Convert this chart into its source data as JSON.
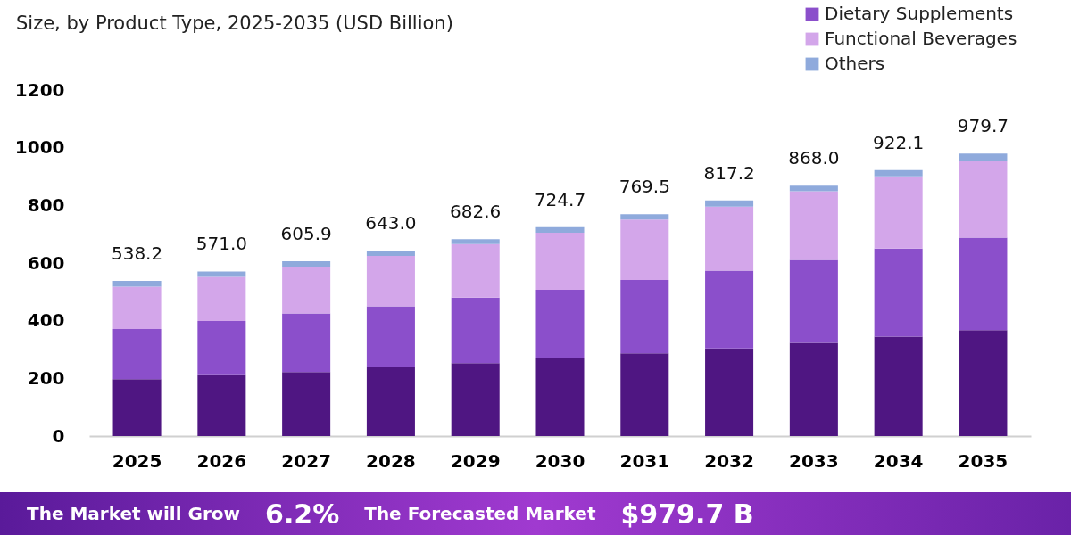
{
  "chart_data": {
    "type": "bar",
    "stacked": true,
    "subtitle": "Size, by Product Type, 2025-2035 (USD Billion)",
    "categories": [
      "2025",
      "2026",
      "2027",
      "2028",
      "2029",
      "2030",
      "2031",
      "2032",
      "2033",
      "2034",
      "2035"
    ],
    "series": [
      {
        "color": "#4f1682",
        "values": [
          197,
          211,
          222,
          238,
          253,
          269,
          287,
          304,
          323,
          345,
          367
        ]
      },
      {
        "name": "Dietary Supplements",
        "color": "#8b4fcb",
        "values": [
          174,
          188,
          203,
          212,
          227,
          238,
          254,
          270,
          288,
          305,
          321
        ]
      },
      {
        "name": "Functional Beverages",
        "color": "#d3a6ea",
        "values": [
          147,
          153,
          163,
          175,
          186,
          198,
          210,
          222,
          238,
          251,
          268
        ]
      },
      {
        "name": "Others",
        "color": "#8faadc",
        "values": [
          20.2,
          19,
          17.9,
          18,
          16.6,
          19.7,
          18.5,
          21.2,
          19,
          21.1,
          23.7
        ]
      }
    ],
    "totals": [
      "538.2",
      "571.0",
      "605.9",
      "643.0",
      "682.6",
      "724.7",
      "769.5",
      "817.2",
      "868.0",
      "922.1",
      "979.7"
    ],
    "ylim": [
      0,
      1200
    ],
    "yticks": [
      0,
      200,
      400,
      600,
      800,
      1000,
      1200
    ],
    "grid": false,
    "legend": "top right",
    "annotations": [
      "The Market will Grow",
      "6.2%",
      "The Forecasted Market",
      "$979.7 B"
    ]
  }
}
